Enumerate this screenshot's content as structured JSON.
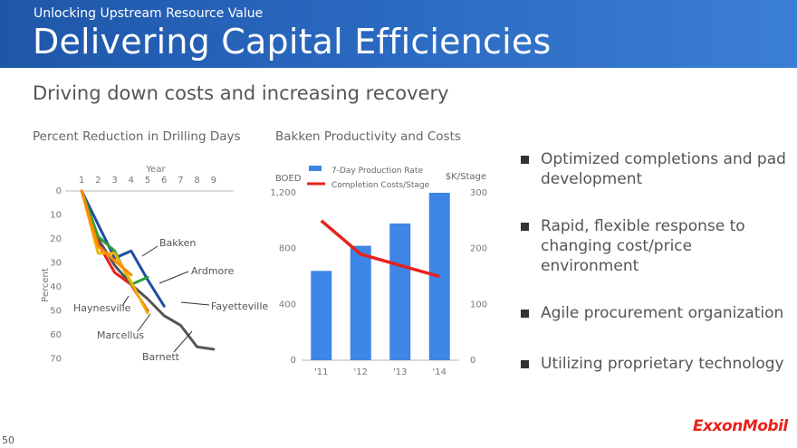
{
  "header": {
    "kicker": "Unlocking Upstream Resource Value",
    "title": "Delivering Capital Efficiencies"
  },
  "subtitle": "Driving down costs and increasing recovery",
  "bullets": [
    "Optimized completions and pad development",
    "Rapid, flexible response to changing cost/price environment",
    "Agile procurement organization",
    "Utilizing proprietary technology"
  ],
  "logo_text": "ExxonMobil",
  "page_number": "50",
  "colors": {
    "banner": "#2a68c0",
    "bar": "#3d85e6",
    "cost_line": "#e8211b",
    "bakken": "#1f4e9e",
    "fayetteville": "#e8211b",
    "haynesville": "#f0b400",
    "marcellus": "#ff8a00",
    "barnett": "#555555",
    "ardmore": "#2e9e3a"
  },
  "chart_data": [
    {
      "type": "line",
      "title": "Percent Reduction in Drilling Days",
      "xlabel": "Year",
      "ylabel": "Percent",
      "x_ticks": [
        1,
        2,
        3,
        4,
        5,
        6,
        7,
        8,
        9
      ],
      "y_ticks": [
        0,
        10,
        20,
        30,
        40,
        50,
        60,
        70
      ],
      "xlim": [
        0,
        10
      ],
      "ylim": [
        0,
        70
      ],
      "y_inverted": true,
      "series": [
        {
          "name": "Barnett",
          "color_key": "barnett",
          "x": [
            1,
            2,
            3,
            4,
            5,
            6,
            7,
            8,
            9
          ],
          "y": [
            0,
            20,
            31,
            39,
            45,
            52,
            56,
            65,
            66
          ]
        },
        {
          "name": "Bakken",
          "color_key": "bakken",
          "x": [
            1,
            2,
            3,
            4,
            5,
            6
          ],
          "y": [
            0,
            14,
            28,
            25,
            37,
            48
          ]
        },
        {
          "name": "Fayetteville",
          "color_key": "fayetteville",
          "x": [
            1,
            2,
            3,
            4,
            5
          ],
          "y": [
            0,
            22,
            34,
            39,
            50
          ]
        },
        {
          "name": "Ardmore",
          "color_key": "ardmore",
          "x": [
            1,
            2,
            3,
            4,
            5
          ],
          "y": [
            0,
            19,
            25,
            39,
            36
          ]
        },
        {
          "name": "Haynesville",
          "color_key": "haynesville",
          "x": [
            1,
            2,
            3,
            4,
            5
          ],
          "y": [
            0,
            26,
            26,
            38,
            51
          ]
        },
        {
          "name": "Marcellus",
          "color_key": "marcellus",
          "x": [
            1,
            2,
            3,
            4
          ],
          "y": [
            0,
            23,
            29,
            35
          ]
        }
      ],
      "annotations": [
        "Bakken",
        "Ardmore",
        "Fayetteville",
        "Haynesville",
        "Marcellus",
        "Barnett"
      ]
    },
    {
      "type": "bar",
      "title": "Bakken Productivity and Costs",
      "categories": [
        "'11",
        "'12",
        "'13",
        "'14"
      ],
      "series": [
        {
          "name": "7-Day Production Rate",
          "axis": "left",
          "values": [
            640,
            820,
            980,
            1200
          ]
        },
        {
          "name": "Completion Costs/Stage",
          "axis": "right",
          "type": "line",
          "values": [
            250,
            190,
            170,
            150
          ]
        }
      ],
      "ylabel_left": "BOED",
      "ylabel_right": "$K/Stage",
      "y_left_ticks": [
        "0",
        "400",
        "800",
        "1,200"
      ],
      "y_right_ticks": [
        "0",
        "100",
        "200",
        "300"
      ],
      "ylim_left": [
        0,
        1200
      ],
      "ylim_right": [
        0,
        300
      ]
    }
  ]
}
